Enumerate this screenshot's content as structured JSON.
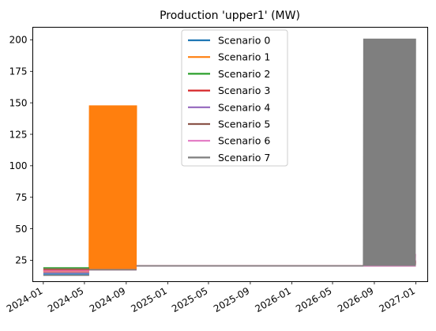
{
  "chart_data": {
    "type": "line",
    "title": "Production 'upper1' (MW)",
    "xlabel": "",
    "ylabel": "",
    "x_axis_type": "date",
    "xlim": [
      "2023-12-01",
      "2027-02-05"
    ],
    "ylim": [
      8,
      210
    ],
    "grid": false,
    "legend_position": "top-center",
    "x_ticks": [
      "2024-01",
      "2024-05",
      "2024-09",
      "2025-01",
      "2025-05",
      "2025-09",
      "2026-01",
      "2026-05",
      "2026-09",
      "2027-01"
    ],
    "y_ticks": [
      25,
      50,
      75,
      100,
      125,
      150,
      175,
      200
    ],
    "series": [
      {
        "name": "Scenario 0",
        "color": "#1f77b4",
        "segments": [
          {
            "x": [
              "2024-01-01",
              "2024-05-15"
            ],
            "y": [
              14,
              14
            ]
          },
          {
            "x": [
              "2024-05-15",
              "2024-10-01"
            ],
            "y": [
              17.5,
              17.5
            ]
          },
          {
            "x": [
              "2024-10-01",
              "2026-07-31"
            ],
            "y": [
              20.5,
              20.5
            ]
          },
          {
            "x": [
              "2026-07-31",
              "2026-12-31"
            ],
            "y": [
              20.5,
              20.5
            ]
          }
        ]
      },
      {
        "name": "Scenario 1",
        "color": "#ff7f0e",
        "segments": [
          {
            "x": [
              "2024-01-01",
              "2024-05-15"
            ],
            "y": [
              16,
              16
            ]
          },
          {
            "x": [
              "2024-05-15",
              "2024-10-01"
            ],
            "y": [
              17.5,
              148
            ]
          },
          {
            "x": [
              "2024-10-01",
              "2026-07-31"
            ],
            "y": [
              20.5,
              20.5
            ]
          },
          {
            "x": [
              "2026-07-31",
              "2026-12-31"
            ],
            "y": [
              20,
              25
            ]
          }
        ]
      },
      {
        "name": "Scenario 2",
        "color": "#2ca02c",
        "segments": [
          {
            "x": [
              "2024-01-01",
              "2024-05-15"
            ],
            "y": [
              19,
              19
            ]
          },
          {
            "x": [
              "2024-05-15",
              "2024-10-01"
            ],
            "y": [
              17.5,
              17.5
            ]
          },
          {
            "x": [
              "2024-10-01",
              "2026-07-31"
            ],
            "y": [
              20.5,
              20.5
            ]
          },
          {
            "x": [
              "2026-07-31",
              "2026-12-31"
            ],
            "y": [
              20,
              22
            ]
          }
        ]
      },
      {
        "name": "Scenario 3",
        "color": "#d62728",
        "segments": [
          {
            "x": [
              "2024-01-01",
              "2024-05-15"
            ],
            "y": [
              17,
              17
            ]
          },
          {
            "x": [
              "2024-05-15",
              "2024-10-01"
            ],
            "y": [
              17.5,
              17.5
            ]
          },
          {
            "x": [
              "2024-10-01",
              "2026-07-31"
            ],
            "y": [
              20.5,
              20.5
            ]
          },
          {
            "x": [
              "2026-07-31",
              "2026-12-31"
            ],
            "y": [
              20,
              24
            ]
          }
        ]
      },
      {
        "name": "Scenario 4",
        "color": "#9467bd",
        "segments": [
          {
            "x": [
              "2024-01-01",
              "2024-05-15"
            ],
            "y": [
              15,
              15
            ]
          },
          {
            "x": [
              "2024-05-15",
              "2024-10-01"
            ],
            "y": [
              17.5,
              17.5
            ]
          },
          {
            "x": [
              "2024-10-01",
              "2026-07-31"
            ],
            "y": [
              20.5,
              20.5
            ]
          },
          {
            "x": [
              "2026-07-31",
              "2026-12-31"
            ],
            "y": [
              20,
              25
            ]
          }
        ]
      },
      {
        "name": "Scenario 5",
        "color": "#8c564b",
        "segments": [
          {
            "x": [
              "2024-01-01",
              "2024-05-15"
            ],
            "y": [
              18,
              18
            ]
          },
          {
            "x": [
              "2024-05-15",
              "2024-10-01"
            ],
            "y": [
              17.5,
              17.5
            ]
          },
          {
            "x": [
              "2024-10-01",
              "2026-07-31"
            ],
            "y": [
              20.5,
              20.5
            ]
          },
          {
            "x": [
              "2026-07-31",
              "2026-12-31"
            ],
            "y": [
              20,
              23
            ]
          }
        ]
      },
      {
        "name": "Scenario 6",
        "color": "#e377c2",
        "segments": [
          {
            "x": [
              "2024-01-01",
              "2024-05-15"
            ],
            "y": [
              16.5,
              16.5
            ]
          },
          {
            "x": [
              "2024-05-15",
              "2024-10-01"
            ],
            "y": [
              17.5,
              17.5
            ]
          },
          {
            "x": [
              "2024-10-01",
              "2026-07-31"
            ],
            "y": [
              20.5,
              20.5
            ]
          },
          {
            "x": [
              "2026-07-31",
              "2026-12-31"
            ],
            "y": [
              20,
              30
            ]
          }
        ]
      },
      {
        "name": "Scenario 7",
        "color": "#7f7f7f",
        "segments": [
          {
            "x": [
              "2024-01-01",
              "2024-05-15"
            ],
            "y": [
              13,
              13
            ]
          },
          {
            "x": [
              "2024-05-15",
              "2024-10-01"
            ],
            "y": [
              17.5,
              17.5
            ]
          },
          {
            "x": [
              "2024-10-01",
              "2026-07-31"
            ],
            "y": [
              20.5,
              20.5
            ]
          },
          {
            "x": [
              "2026-07-31",
              "2026-12-31"
            ],
            "y": [
              20.5,
              201
            ]
          }
        ]
      }
    ]
  }
}
